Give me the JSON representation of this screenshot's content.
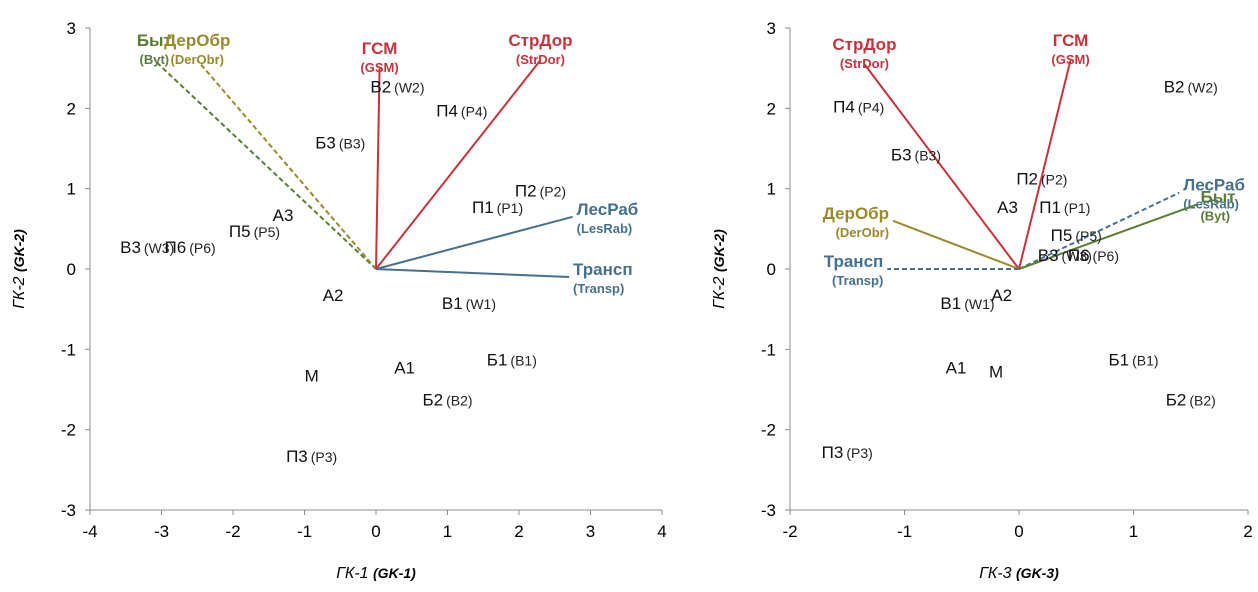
{
  "chart_data": [
    {
      "type": "scatter",
      "title": "",
      "xlabel": "ГК-1",
      "xlabel_alt": "(GK-1)",
      "ylabel": "ГК-2",
      "ylabel_alt": "(GK-2)",
      "xlim": [
        -4,
        4
      ],
      "ylim": [
        -3,
        3
      ],
      "xticks": [
        -4,
        -3,
        -2,
        -1,
        0,
        1,
        2,
        3,
        4
      ],
      "yticks": [
        -3,
        -2,
        -1,
        0,
        1,
        2,
        3
      ],
      "grid": false,
      "points": [
        {
          "label": "В2",
          "alt": "(W2)",
          "x": 0.3,
          "y": 2.2
        },
        {
          "label": "П4",
          "alt": "(P4)",
          "x": 1.2,
          "y": 1.9
        },
        {
          "label": "Б3",
          "alt": "(B3)",
          "x": -0.5,
          "y": 1.5
        },
        {
          "label": "П2",
          "alt": "(P2)",
          "x": 2.3,
          "y": 0.9
        },
        {
          "label": "П1",
          "alt": "(P1)",
          "x": 1.7,
          "y": 0.7
        },
        {
          "label": "А3",
          "alt": "",
          "x": -1.3,
          "y": 0.6
        },
        {
          "label": "П5",
          "alt": "(P5)",
          "x": -1.7,
          "y": 0.4
        },
        {
          "label": "В3",
          "alt": "(W3)",
          "x": -3.2,
          "y": 0.2
        },
        {
          "label": "П6",
          "alt": "(P6)",
          "x": -2.6,
          "y": 0.2
        },
        {
          "label": "А2",
          "alt": "",
          "x": -0.6,
          "y": -0.4
        },
        {
          "label": "В1",
          "alt": "(W1)",
          "x": 1.3,
          "y": -0.5
        },
        {
          "label": "М",
          "alt": "",
          "x": -0.9,
          "y": -1.4
        },
        {
          "label": "А1",
          "alt": "",
          "x": 0.4,
          "y": -1.3
        },
        {
          "label": "Б1",
          "alt": "(B1)",
          "x": 1.9,
          "y": -1.2
        },
        {
          "label": "Б2",
          "alt": "(B2)",
          "x": 1.0,
          "y": -1.7
        },
        {
          "label": "П3",
          "alt": "(P3)",
          "x": -0.9,
          "y": -2.4
        }
      ],
      "vectors": [
        {
          "name": "Быт",
          "alt": "(Byt)",
          "x": -3.1,
          "y": 2.6,
          "color": "#5a7d34",
          "style": "dashed"
        },
        {
          "name": "ДерОбр",
          "alt": "(DerObr)",
          "x": -2.5,
          "y": 2.6,
          "color": "#9a8a2a",
          "style": "dashed"
        },
        {
          "name": "ГСМ",
          "alt": "(GSM)",
          "x": 0.05,
          "y": 2.5,
          "color": "#c8323c",
          "style": "solid"
        },
        {
          "name": "СтрДор",
          "alt": "(StrDor)",
          "x": 2.3,
          "y": 2.6,
          "color": "#c8323c",
          "style": "solid"
        },
        {
          "name": "ЛесРаб",
          "alt": "(LesRab)",
          "x": 2.75,
          "y": 0.65,
          "color": "#45708f",
          "style": "solid"
        },
        {
          "name": "Трансп",
          "alt": "(Transp)",
          "x": 2.7,
          "y": -0.1,
          "color": "#45708f",
          "style": "solid"
        }
      ]
    },
    {
      "type": "scatter",
      "title": "",
      "xlabel": "ГК-3",
      "xlabel_alt": "(GK-3)",
      "ylabel": "ГК-2",
      "ylabel_alt": "(GK-2)",
      "xlim": [
        -2,
        2
      ],
      "ylim": [
        -3,
        3
      ],
      "xticks": [
        -2,
        -1,
        0,
        1,
        2
      ],
      "yticks": [
        -3,
        -2,
        -1,
        0,
        1,
        2,
        3
      ],
      "grid": false,
      "points": [
        {
          "label": "В2",
          "alt": "(W2)",
          "x": 1.5,
          "y": 2.2
        },
        {
          "label": "П4",
          "alt": "(P4)",
          "x": -1.4,
          "y": 1.95
        },
        {
          "label": "Б3",
          "alt": "(B3)",
          "x": -0.9,
          "y": 1.35
        },
        {
          "label": "П2",
          "alt": "(P2)",
          "x": 0.2,
          "y": 1.05
        },
        {
          "label": "А3",
          "alt": "",
          "x": -0.1,
          "y": 0.7
        },
        {
          "label": "П1",
          "alt": "(P1)",
          "x": 0.4,
          "y": 0.7
        },
        {
          "label": "П5",
          "alt": "(P5)",
          "x": 0.5,
          "y": 0.35
        },
        {
          "label": "В3",
          "alt": "(W3)",
          "x": 0.4,
          "y": 0.1
        },
        {
          "label": "П6",
          "alt": "(P6)",
          "x": 0.65,
          "y": 0.1
        },
        {
          "label": "В1",
          "alt": "(W1)",
          "x": -0.45,
          "y": -0.5
        },
        {
          "label": "А2",
          "alt": "",
          "x": -0.15,
          "y": -0.4
        },
        {
          "label": "А1",
          "alt": "",
          "x": -0.55,
          "y": -1.3
        },
        {
          "label": "М",
          "alt": "",
          "x": -0.2,
          "y": -1.35
        },
        {
          "label": "Б1",
          "alt": "(B1)",
          "x": 1.0,
          "y": -1.2
        },
        {
          "label": "Б2",
          "alt": "(B2)",
          "x": 1.5,
          "y": -1.7
        },
        {
          "label": "П3",
          "alt": "(P3)",
          "x": -1.5,
          "y": -2.35
        }
      ],
      "vectors": [
        {
          "name": "СтрДор",
          "alt": "(StrDor)",
          "x": -1.35,
          "y": 2.55,
          "color": "#c8323c",
          "style": "solid"
        },
        {
          "name": "ГСМ",
          "alt": "(GSM)",
          "x": 0.45,
          "y": 2.6,
          "color": "#c8323c",
          "style": "solid"
        },
        {
          "name": "ЛесРаб",
          "alt": "(LesRab)",
          "x": 1.4,
          "y": 0.95,
          "color": "#45708f",
          "style": "dashed"
        },
        {
          "name": "Быт",
          "alt": "(Byt)",
          "x": 1.55,
          "y": 0.8,
          "color": "#5a7d34",
          "style": "solid"
        },
        {
          "name": "ДерОбр",
          "alt": "(DerObr)",
          "x": -1.1,
          "y": 0.6,
          "color": "#9a8a2a",
          "style": "solid"
        },
        {
          "name": "Трансп",
          "alt": "(Transp)",
          "x": -1.15,
          "y": 0.0,
          "color": "#45708f",
          "style": "dashed"
        }
      ]
    }
  ]
}
